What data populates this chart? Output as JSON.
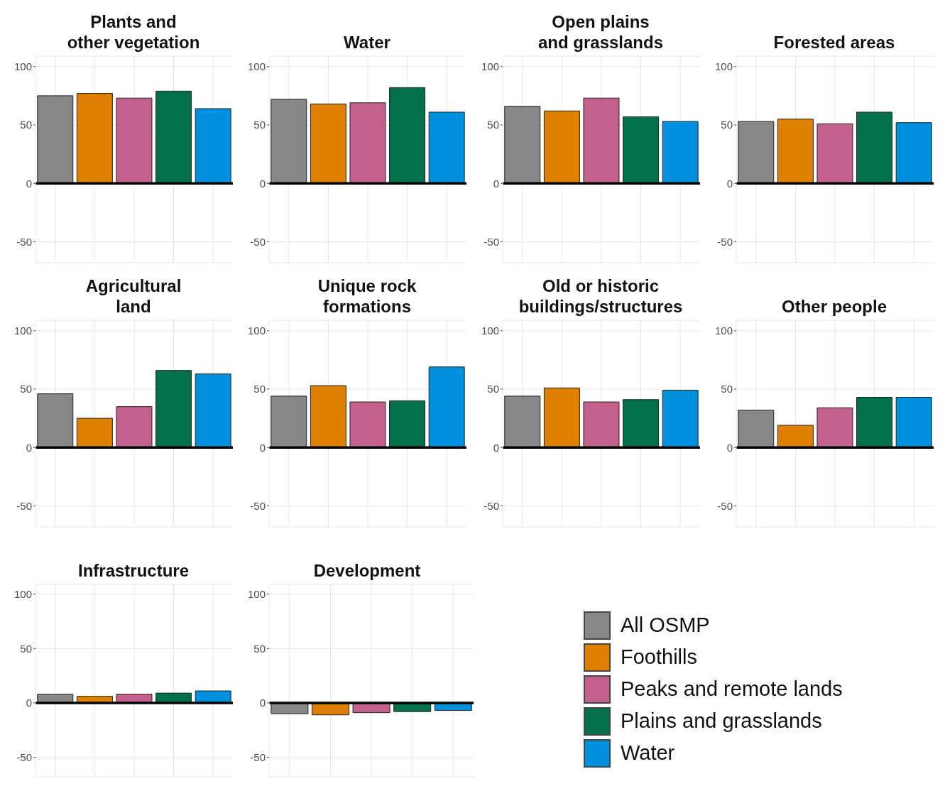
{
  "chart_data": [
    {
      "type": "bar",
      "title": "Plants and\nother vegetation",
      "categories": [
        null,
        null,
        null,
        null,
        null
      ],
      "series": [
        {
          "color": "#878787",
          "values": [
            75,
            null,
            null,
            null,
            null
          ]
        },
        {
          "color": "#e08000",
          "values": [
            null,
            77,
            null,
            null,
            null
          ]
        },
        {
          "color": "#c4608c",
          "values": [
            null,
            null,
            73,
            null,
            null
          ]
        },
        {
          "color": "#02704a",
          "values": [
            null,
            null,
            null,
            79,
            null
          ]
        },
        {
          "color": "#0090de",
          "values": [
            null,
            null,
            null,
            null,
            64
          ]
        }
      ],
      "ylim": [
        -68,
        109
      ],
      "yticks": [
        -50,
        0,
        50,
        100
      ],
      "grid": true,
      "tick_labels": "y",
      "ref_lines": [
        {
          "axis": "y",
          "value": 0,
          "color": "#000000"
        }
      ]
    },
    {
      "type": "bar",
      "title": "Water",
      "categories": [
        null,
        null,
        null,
        null,
        null
      ],
      "series": [
        {
          "color": "#878787",
          "values": [
            72,
            null,
            null,
            null,
            null
          ]
        },
        {
          "color": "#e08000",
          "values": [
            null,
            68,
            null,
            null,
            null
          ]
        },
        {
          "color": "#c4608c",
          "values": [
            null,
            null,
            69,
            null,
            null
          ]
        },
        {
          "color": "#02704a",
          "values": [
            null,
            null,
            null,
            82,
            null
          ]
        },
        {
          "color": "#0090de",
          "values": [
            null,
            null,
            null,
            null,
            61
          ]
        }
      ],
      "ylim": [
        -68,
        109
      ],
      "yticks": [
        -50,
        0,
        50,
        100
      ],
      "grid": true,
      "tick_labels": "y",
      "ref_lines": [
        {
          "axis": "y",
          "value": 0,
          "color": "#000000"
        }
      ]
    },
    {
      "type": "bar",
      "title": "Open plains\nand grasslands",
      "categories": [
        null,
        null,
        null,
        null,
        null
      ],
      "series": [
        {
          "color": "#878787",
          "values": [
            66,
            null,
            null,
            null,
            null
          ]
        },
        {
          "color": "#e08000",
          "values": [
            null,
            62,
            null,
            null,
            null
          ]
        },
        {
          "color": "#c4608c",
          "values": [
            null,
            null,
            73,
            null,
            null
          ]
        },
        {
          "color": "#02704a",
          "values": [
            null,
            null,
            null,
            57,
            null
          ]
        },
        {
          "color": "#0090de",
          "values": [
            null,
            null,
            null,
            null,
            53
          ]
        }
      ],
      "ylim": [
        -68,
        109
      ],
      "yticks": [
        -50,
        0,
        50,
        100
      ],
      "grid": true,
      "tick_labels": "y",
      "ref_lines": [
        {
          "axis": "y",
          "value": 0,
          "color": "#000000"
        }
      ]
    },
    {
      "type": "bar",
      "title": "Forested areas",
      "categories": [
        null,
        null,
        null,
        null,
        null
      ],
      "series": [
        {
          "color": "#878787",
          "values": [
            53,
            null,
            null,
            null,
            null
          ]
        },
        {
          "color": "#e08000",
          "values": [
            null,
            55,
            null,
            null,
            null
          ]
        },
        {
          "color": "#c4608c",
          "values": [
            null,
            null,
            51,
            null,
            null
          ]
        },
        {
          "color": "#02704a",
          "values": [
            null,
            null,
            null,
            61,
            null
          ]
        },
        {
          "color": "#0090de",
          "values": [
            null,
            null,
            null,
            null,
            52
          ]
        }
      ],
      "ylim": [
        -68,
        109
      ],
      "yticks": [
        -50,
        0,
        50,
        100
      ],
      "grid": true,
      "tick_labels": "y",
      "ref_lines": [
        {
          "axis": "y",
          "value": 0,
          "color": "#000000"
        }
      ]
    },
    {
      "type": "bar",
      "title": "Agricultural\nland",
      "categories": [
        null,
        null,
        null,
        null,
        null
      ],
      "series": [
        {
          "color": "#878787",
          "values": [
            46,
            null,
            null,
            null,
            null
          ]
        },
        {
          "color": "#e08000",
          "values": [
            null,
            25,
            null,
            null,
            null
          ]
        },
        {
          "color": "#c4608c",
          "values": [
            null,
            null,
            35,
            null,
            null
          ]
        },
        {
          "color": "#02704a",
          "values": [
            null,
            null,
            null,
            66,
            null
          ]
        },
        {
          "color": "#0090de",
          "values": [
            null,
            null,
            null,
            null,
            63
          ]
        }
      ],
      "ylim": [
        -68,
        109
      ],
      "yticks": [
        -50,
        0,
        50,
        100
      ],
      "grid": true,
      "tick_labels": "y",
      "ref_lines": [
        {
          "axis": "y",
          "value": 0,
          "color": "#000000"
        }
      ]
    },
    {
      "type": "bar",
      "title": "Unique rock\nformations",
      "categories": [
        null,
        null,
        null,
        null,
        null
      ],
      "series": [
        {
          "color": "#878787",
          "values": [
            44,
            null,
            null,
            null,
            null
          ]
        },
        {
          "color": "#e08000",
          "values": [
            null,
            53,
            null,
            null,
            null
          ]
        },
        {
          "color": "#c4608c",
          "values": [
            null,
            null,
            39,
            null,
            null
          ]
        },
        {
          "color": "#02704a",
          "values": [
            null,
            null,
            null,
            40,
            null
          ]
        },
        {
          "color": "#0090de",
          "values": [
            null,
            null,
            null,
            null,
            69
          ]
        }
      ],
      "ylim": [
        -68,
        109
      ],
      "yticks": [
        -50,
        0,
        50,
        100
      ],
      "grid": true,
      "tick_labels": "y",
      "ref_lines": [
        {
          "axis": "y",
          "value": 0,
          "color": "#000000"
        }
      ]
    },
    {
      "type": "bar",
      "title": "Old or historic\nbuildings/structures",
      "categories": [
        null,
        null,
        null,
        null,
        null
      ],
      "series": [
        {
          "color": "#878787",
          "values": [
            44,
            null,
            null,
            null,
            null
          ]
        },
        {
          "color": "#e08000",
          "values": [
            null,
            51,
            null,
            null,
            null
          ]
        },
        {
          "color": "#c4608c",
          "values": [
            null,
            null,
            39,
            null,
            null
          ]
        },
        {
          "color": "#02704a",
          "values": [
            null,
            null,
            null,
            41,
            null
          ]
        },
        {
          "color": "#0090de",
          "values": [
            null,
            null,
            null,
            null,
            49
          ]
        }
      ],
      "ylim": [
        -68,
        109
      ],
      "yticks": [
        -50,
        0,
        50,
        100
      ],
      "grid": true,
      "tick_labels": "y",
      "ref_lines": [
        {
          "axis": "y",
          "value": 0,
          "color": "#000000"
        }
      ]
    },
    {
      "type": "bar",
      "title": "Other people",
      "categories": [
        null,
        null,
        null,
        null,
        null
      ],
      "series": [
        {
          "color": "#878787",
          "values": [
            32,
            null,
            null,
            null,
            null
          ]
        },
        {
          "color": "#e08000",
          "values": [
            null,
            19,
            null,
            null,
            null
          ]
        },
        {
          "color": "#c4608c",
          "values": [
            null,
            null,
            34,
            null,
            null
          ]
        },
        {
          "color": "#02704a",
          "values": [
            null,
            null,
            null,
            43,
            null
          ]
        },
        {
          "color": "#0090de",
          "values": [
            null,
            null,
            null,
            null,
            43
          ]
        }
      ],
      "ylim": [
        -68,
        109
      ],
      "yticks": [
        -50,
        0,
        50,
        100
      ],
      "grid": true,
      "tick_labels": "y",
      "ref_lines": [
        {
          "axis": "y",
          "value": 0,
          "color": "#000000"
        }
      ]
    },
    {
      "type": "bar",
      "title": "Infrastructure",
      "categories": [
        null,
        null,
        null,
        null,
        null
      ],
      "series": [
        {
          "color": "#878787",
          "values": [
            8,
            null,
            null,
            null,
            null
          ]
        },
        {
          "color": "#e08000",
          "values": [
            null,
            6,
            null,
            null,
            null
          ]
        },
        {
          "color": "#c4608c",
          "values": [
            null,
            null,
            8,
            null,
            null
          ]
        },
        {
          "color": "#02704a",
          "values": [
            null,
            null,
            null,
            9,
            null
          ]
        },
        {
          "color": "#0090de",
          "values": [
            null,
            null,
            null,
            null,
            11
          ]
        }
      ],
      "ylim": [
        -68,
        109
      ],
      "yticks": [
        -50,
        0,
        50,
        100
      ],
      "grid": true,
      "tick_labels": "y",
      "ref_lines": [
        {
          "axis": "y",
          "value": 0,
          "color": "#000000"
        }
      ]
    },
    {
      "type": "bar",
      "title": "Development",
      "categories": [
        null,
        null,
        null,
        null,
        null
      ],
      "series": [
        {
          "name": "All OSMP",
          "color": "#878787",
          "values": [
            -10,
            null,
            null,
            null,
            null
          ]
        },
        {
          "name": "Foothills",
          "color": "#e08000",
          "values": [
            null,
            -11,
            null,
            null,
            null
          ]
        },
        {
          "name": "Peaks and remote lands",
          "color": "#c4608c",
          "values": [
            null,
            null,
            -9,
            null,
            null
          ]
        },
        {
          "name": "Plains and grasslands",
          "color": "#02704a",
          "values": [
            null,
            null,
            null,
            -8,
            null
          ]
        },
        {
          "name": "Water",
          "color": "#0090de",
          "values": [
            null,
            null,
            null,
            null,
            -7
          ]
        }
      ],
      "ylim": [
        -68,
        109
      ],
      "yticks": [
        -50,
        0,
        50,
        100
      ],
      "grid": true,
      "tick_labels": "y",
      "legend": "right",
      "ref_lines": [
        {
          "axis": "y",
          "value": 0,
          "color": "#000000"
        }
      ]
    }
  ]
}
